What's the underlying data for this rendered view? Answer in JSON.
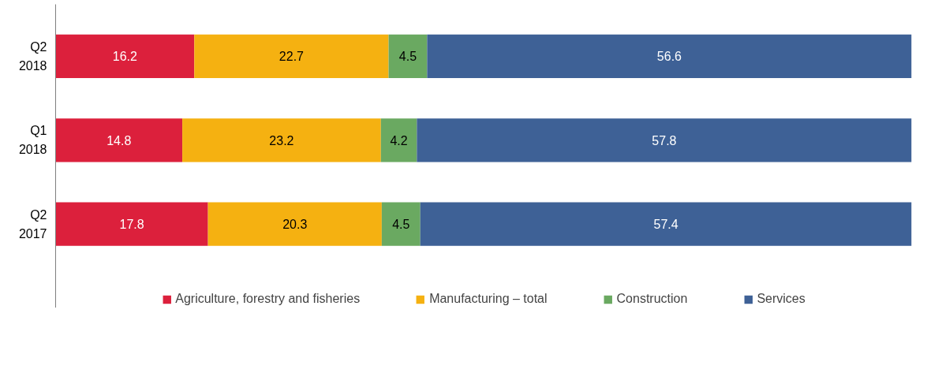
{
  "chart_data": {
    "type": "bar",
    "orientation": "horizontal",
    "stacked": true,
    "data_labels": true,
    "legend": "bottom",
    "grid": false,
    "categories": [
      "Q2\n2018",
      "Q1\n2018",
      "Q2\n2017"
    ],
    "series": [
      {
        "name": "Agriculture, forestry and fisheries",
        "color": "#dc203c",
        "values": [
          16.2,
          14.8,
          17.8
        ]
      },
      {
        "name": "Manufacturing – total",
        "color": "#f5b111",
        "values": [
          22.7,
          23.2,
          20.3
        ]
      },
      {
        "name": "Construction",
        "color": "#6aa961",
        "values": [
          4.5,
          4.2,
          4.5
        ]
      },
      {
        "name": "Services",
        "color": "#3e6196",
        "values": [
          56.6,
          57.8,
          57.4
        ]
      }
    ]
  }
}
